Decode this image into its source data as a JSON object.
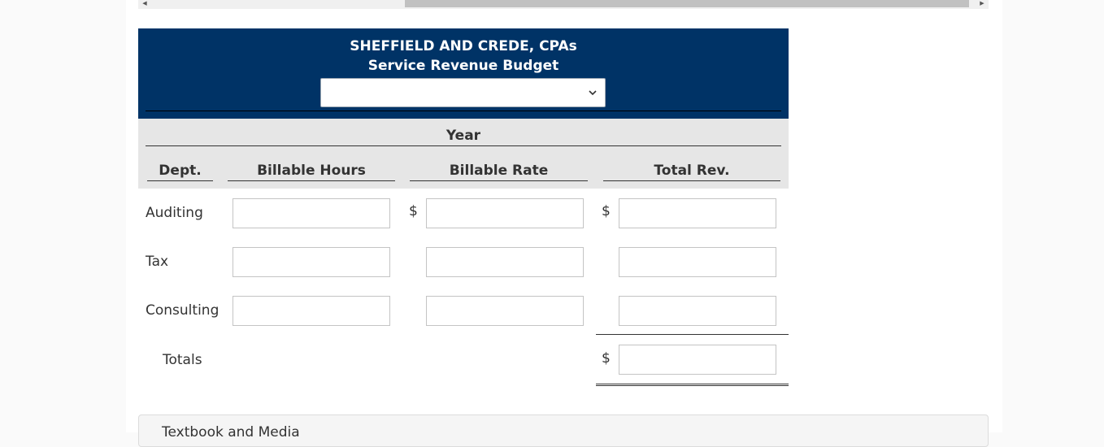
{
  "worksheet": {
    "company": "SHEFFIELD AND CREDE, CPAs",
    "title": "Service Revenue Budget",
    "period_select": {
      "value": ""
    },
    "year_label": "Year",
    "columns": {
      "dept": "Dept.",
      "hours": "Billable Hours",
      "rate": "Billable Rate",
      "total": "Total Rev."
    },
    "rows": [
      {
        "label": "Auditing",
        "hours": "",
        "rate": "",
        "total": ""
      },
      {
        "label": "Tax",
        "hours": "",
        "rate": "",
        "total": ""
      },
      {
        "label": "Consulting",
        "hours": "",
        "rate": "",
        "total": ""
      }
    ],
    "totals": {
      "label": "Totals",
      "total": ""
    },
    "currency_symbol": "$"
  },
  "bottom_panel": {
    "label": "Textbook and Media"
  },
  "colors": {
    "header_bg": "#003366",
    "band_bg": "#e6e6e6"
  }
}
